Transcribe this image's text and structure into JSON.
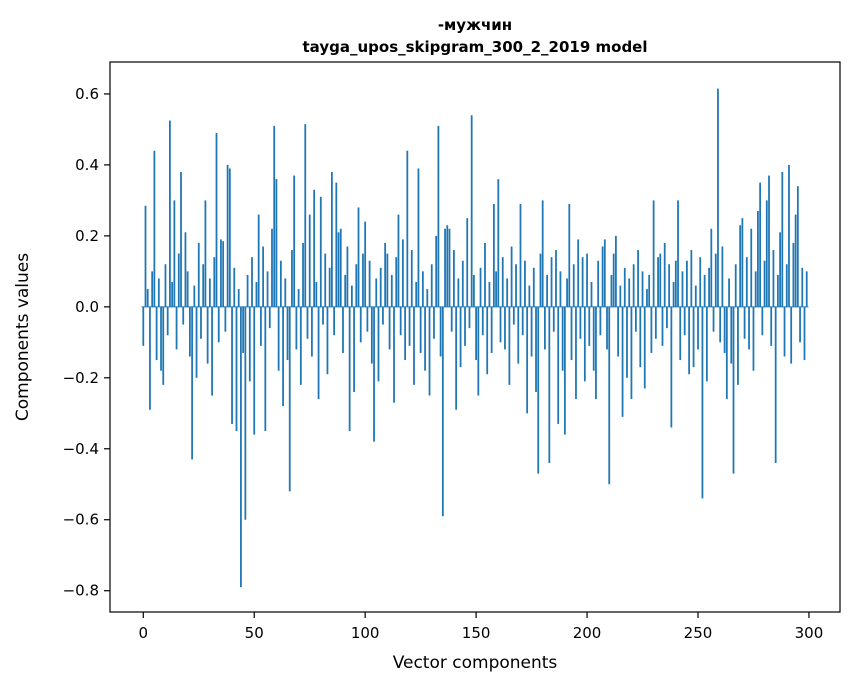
{
  "chart_data": {
    "type": "bar",
    "title": "-мужчин",
    "subtitle": "tayga_upos_skipgram_300_2_2019 model",
    "xlabel": "Vector components",
    "ylabel": "Components values",
    "bar_color": "#1f77b4",
    "axis_color": "#000000",
    "xlim": [
      -15,
      314
    ],
    "ylim": [
      -0.86,
      0.69
    ],
    "xticks": [
      0,
      50,
      100,
      150,
      200,
      250,
      300
    ],
    "xtick_labels": [
      "0",
      "50",
      "100",
      "150",
      "200",
      "250",
      "300"
    ],
    "yticks": [
      0.6,
      0.4,
      0.2,
      0.0,
      -0.2,
      -0.4,
      -0.6,
      -0.8
    ],
    "ytick_labels": [
      "0.6",
      "0.4",
      "0.2",
      "0.0",
      "−0.2",
      "−0.4",
      "−0.6",
      "−0.8"
    ],
    "grid": false,
    "legend": null,
    "values": [
      -0.11,
      0.285,
      0.05,
      -0.29,
      0.1,
      0.44,
      -0.15,
      0.08,
      -0.18,
      -0.22,
      0.12,
      -0.08,
      0.525,
      0.07,
      0.3,
      -0.12,
      0.15,
      0.38,
      -0.05,
      0.21,
      0.1,
      -0.14,
      -0.43,
      0.06,
      -0.2,
      0.18,
      -0.09,
      0.12,
      0.3,
      -0.16,
      0.08,
      -0.25,
      0.14,
      0.49,
      -0.1,
      0.19,
      0.185,
      -0.07,
      0.4,
      0.39,
      -0.33,
      0.11,
      -0.35,
      0.05,
      -0.79,
      -0.13,
      -0.6,
      0.09,
      -0.21,
      0.14,
      -0.36,
      0.07,
      0.26,
      -0.11,
      0.17,
      -0.35,
      0.1,
      -0.06,
      0.22,
      0.51,
      0.36,
      -0.18,
      0.13,
      -0.28,
      0.08,
      -0.15,
      -0.52,
      0.16,
      0.37,
      -0.12,
      0.05,
      -0.22,
      0.18,
      0.515,
      -0.09,
      0.26,
      -0.14,
      0.33,
      0.07,
      -0.26,
      0.31,
      -0.05,
      0.15,
      -0.19,
      0.11,
      0.38,
      -0.08,
      0.35,
      0.21,
      0.22,
      -0.13,
      0.09,
      0.17,
      -0.35,
      0.06,
      -0.24,
      0.12,
      0.28,
      -0.1,
      0.15,
      0.24,
      -0.07,
      0.13,
      -0.16,
      -0.38,
      0.08,
      -0.21,
      0.11,
      -0.05,
      0.18,
      0.15,
      -0.12,
      0.09,
      -0.27,
      0.14,
      0.26,
      -0.08,
      0.19,
      -0.15,
      0.44,
      -0.11,
      0.16,
      -0.22,
      0.07,
      0.39,
      -0.13,
      0.1,
      -0.18,
      0.05,
      -0.25,
      0.12,
      -0.09,
      0.2,
      0.51,
      -0.14,
      -0.59,
      0.22,
      0.23,
      0.22,
      -0.07,
      0.16,
      -0.29,
      0.08,
      -0.17,
      0.13,
      -0.11,
      0.25,
      -0.06,
      0.54,
      0.09,
      -0.15,
      -0.25,
      0.11,
      -0.08,
      0.18,
      -0.19,
      0.07,
      -0.13,
      0.29,
      0.1,
      0.36,
      -0.1,
      0.14,
      -0.12,
      0.08,
      -0.22,
      0.17,
      -0.05,
      0.12,
      -0.16,
      0.29,
      -0.08,
      0.13,
      -0.3,
      0.06,
      -0.14,
      0.11,
      -0.24,
      -0.47,
      0.15,
      0.3,
      -0.12,
      0.09,
      -0.44,
      0.14,
      -0.07,
      0.16,
      -0.33,
      0.1,
      -0.18,
      -0.36,
      0.08,
      0.29,
      -0.15,
      0.12,
      -0.26,
      0.19,
      -0.09,
      0.14,
      -0.21,
      0.15,
      -0.11,
      0.07,
      -0.18,
      -0.26,
      0.13,
      -0.08,
      0.17,
      0.19,
      -0.12,
      -0.5,
      0.09,
      0.15,
      0.2,
      -0.14,
      0.06,
      -0.31,
      0.11,
      -0.2,
      0.08,
      -0.26,
      0.12,
      -0.07,
      0.16,
      -0.17,
      0.1,
      -0.23,
      0.05,
      0.09,
      -0.13,
      0.3,
      -0.09,
      0.14,
      0.15,
      -0.11,
      0.18,
      -0.06,
      0.12,
      -0.34,
      0.07,
      0.13,
      0.3,
      -0.15,
      0.1,
      -0.08,
      0.13,
      -0.19,
      0.16,
      -0.17,
      0.06,
      -0.12,
      0.14,
      -0.54,
      0.09,
      -0.21,
      0.11,
      0.22,
      -0.07,
      0.15,
      0.615,
      -0.1,
      0.17,
      -0.13,
      -0.26,
      0.08,
      -0.16,
      -0.47,
      0.12,
      -0.22,
      0.23,
      0.25,
      -0.09,
      0.14,
      -0.12,
      0.22,
      -0.18,
      0.1,
      0.27,
      0.35,
      -0.08,
      0.13,
      0.3,
      0.37,
      -0.11,
      0.16,
      -0.44,
      0.09,
      0.21,
      0.38,
      -0.14,
      0.12,
      0.4,
      -0.16,
      0.18,
      0.26,
      0.34,
      -0.1,
      0.11,
      -0.15,
      0.1
    ]
  }
}
